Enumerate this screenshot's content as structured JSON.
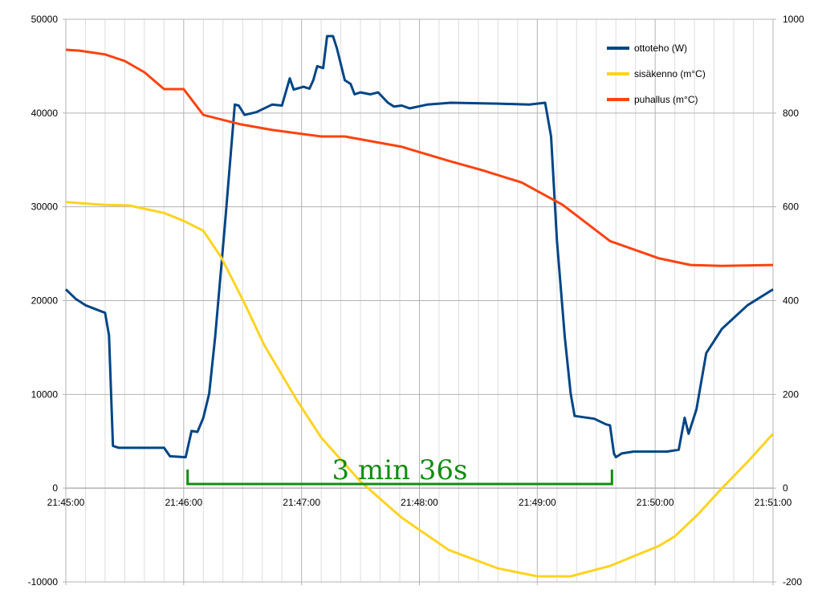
{
  "chart_data": {
    "type": "line",
    "title": "",
    "xlabel": "",
    "ylabel": "",
    "x_unit": "seconds since 21:45:00",
    "xlim": [
      0,
      360
    ],
    "x_tick_labels": [
      "21:45:00",
      "21:46:00",
      "21:47:00",
      "21:48:00",
      "21:49:00",
      "21:50:00",
      "21:51:00"
    ],
    "ylim_left": [
      -10000,
      50000
    ],
    "ylim_right": [
      -200,
      1000
    ],
    "left_tick_labels": [
      "-10000",
      "0",
      "10000",
      "20000",
      "30000",
      "40000",
      "50000"
    ],
    "right_tick_labels": [
      "-200",
      "0",
      "200",
      "400",
      "600",
      "800",
      "1000"
    ],
    "grid": true,
    "legend_position": "top-right",
    "series": [
      {
        "name": "ottoteho (W)",
        "axis": "left",
        "color": "#004586",
        "x": [
          0,
          5,
          10,
          20,
          22,
          24,
          27,
          50,
          53,
          61,
          64,
          67,
          70,
          73,
          76,
          81,
          86,
          88,
          91,
          97,
          105,
          110,
          114,
          116,
          121,
          124,
          126,
          128,
          131,
          133,
          136,
          138,
          142,
          145,
          147,
          150,
          155,
          159,
          164,
          167,
          171,
          175,
          184,
          196,
          220,
          236,
          244,
          247,
          250,
          254,
          257,
          259,
          269,
          275,
          277,
          279,
          280,
          283,
          289,
          306,
          312,
          315,
          317,
          321,
          326,
          334,
          347,
          360
        ],
        "y": [
          21200,
          20200,
          19500,
          18700,
          16300,
          4500,
          4300,
          4300,
          3400,
          3300,
          6100,
          6000,
          7500,
          10100,
          16100,
          28100,
          40900,
          40800,
          39800,
          40100,
          40900,
          40800,
          43700,
          42500,
          42800,
          42600,
          43500,
          45000,
          44800,
          48200,
          48200,
          46900,
          43500,
          43100,
          42000,
          42200,
          42000,
          42200,
          41100,
          40700,
          40800,
          40500,
          40900,
          41100,
          41000,
          40900,
          41100,
          37500,
          26400,
          16100,
          10100,
          7700,
          7400,
          6800,
          6700,
          3700,
          3300,
          3700,
          3900,
          3900,
          4100,
          7500,
          5800,
          8400,
          14400,
          17000,
          19500,
          21200
        ]
      },
      {
        "name": "sisäkenno (m°C)",
        "axis": "right",
        "color": "#ffd320",
        "x": [
          0,
          20,
          32,
          50,
          60,
          70,
          79,
          91,
          101,
          118,
          130,
          150,
          171,
          195,
          220,
          240,
          257,
          277,
          302,
          310,
          322,
          334,
          347,
          360
        ],
        "y": [
          610,
          604,
          603,
          587,
          570,
          549,
          493,
          394,
          305,
          185,
          108,
          14,
          -63,
          -132,
          -171,
          -188,
          -188,
          -166,
          -123,
          -103,
          -55,
          0,
          56,
          116
        ]
      },
      {
        "name": "puhallus (m°C)",
        "axis": "right",
        "color": "#ff420e",
        "x": [
          0,
          7,
          20,
          30,
          40,
          50,
          60,
          70,
          89,
          105,
          130,
          142,
          171,
          195,
          212,
          232,
          253,
          277,
          302,
          318,
          334,
          360
        ],
        "y": [
          935,
          933,
          925,
          911,
          887,
          851,
          851,
          796,
          776,
          764,
          750,
          750,
          728,
          698,
          678,
          652,
          604,
          527,
          490,
          476,
          474,
          476
        ]
      }
    ],
    "annotation": {
      "text": "3 min 36s",
      "color": "#128c12",
      "x_start": 62,
      "x_end": 278
    }
  }
}
